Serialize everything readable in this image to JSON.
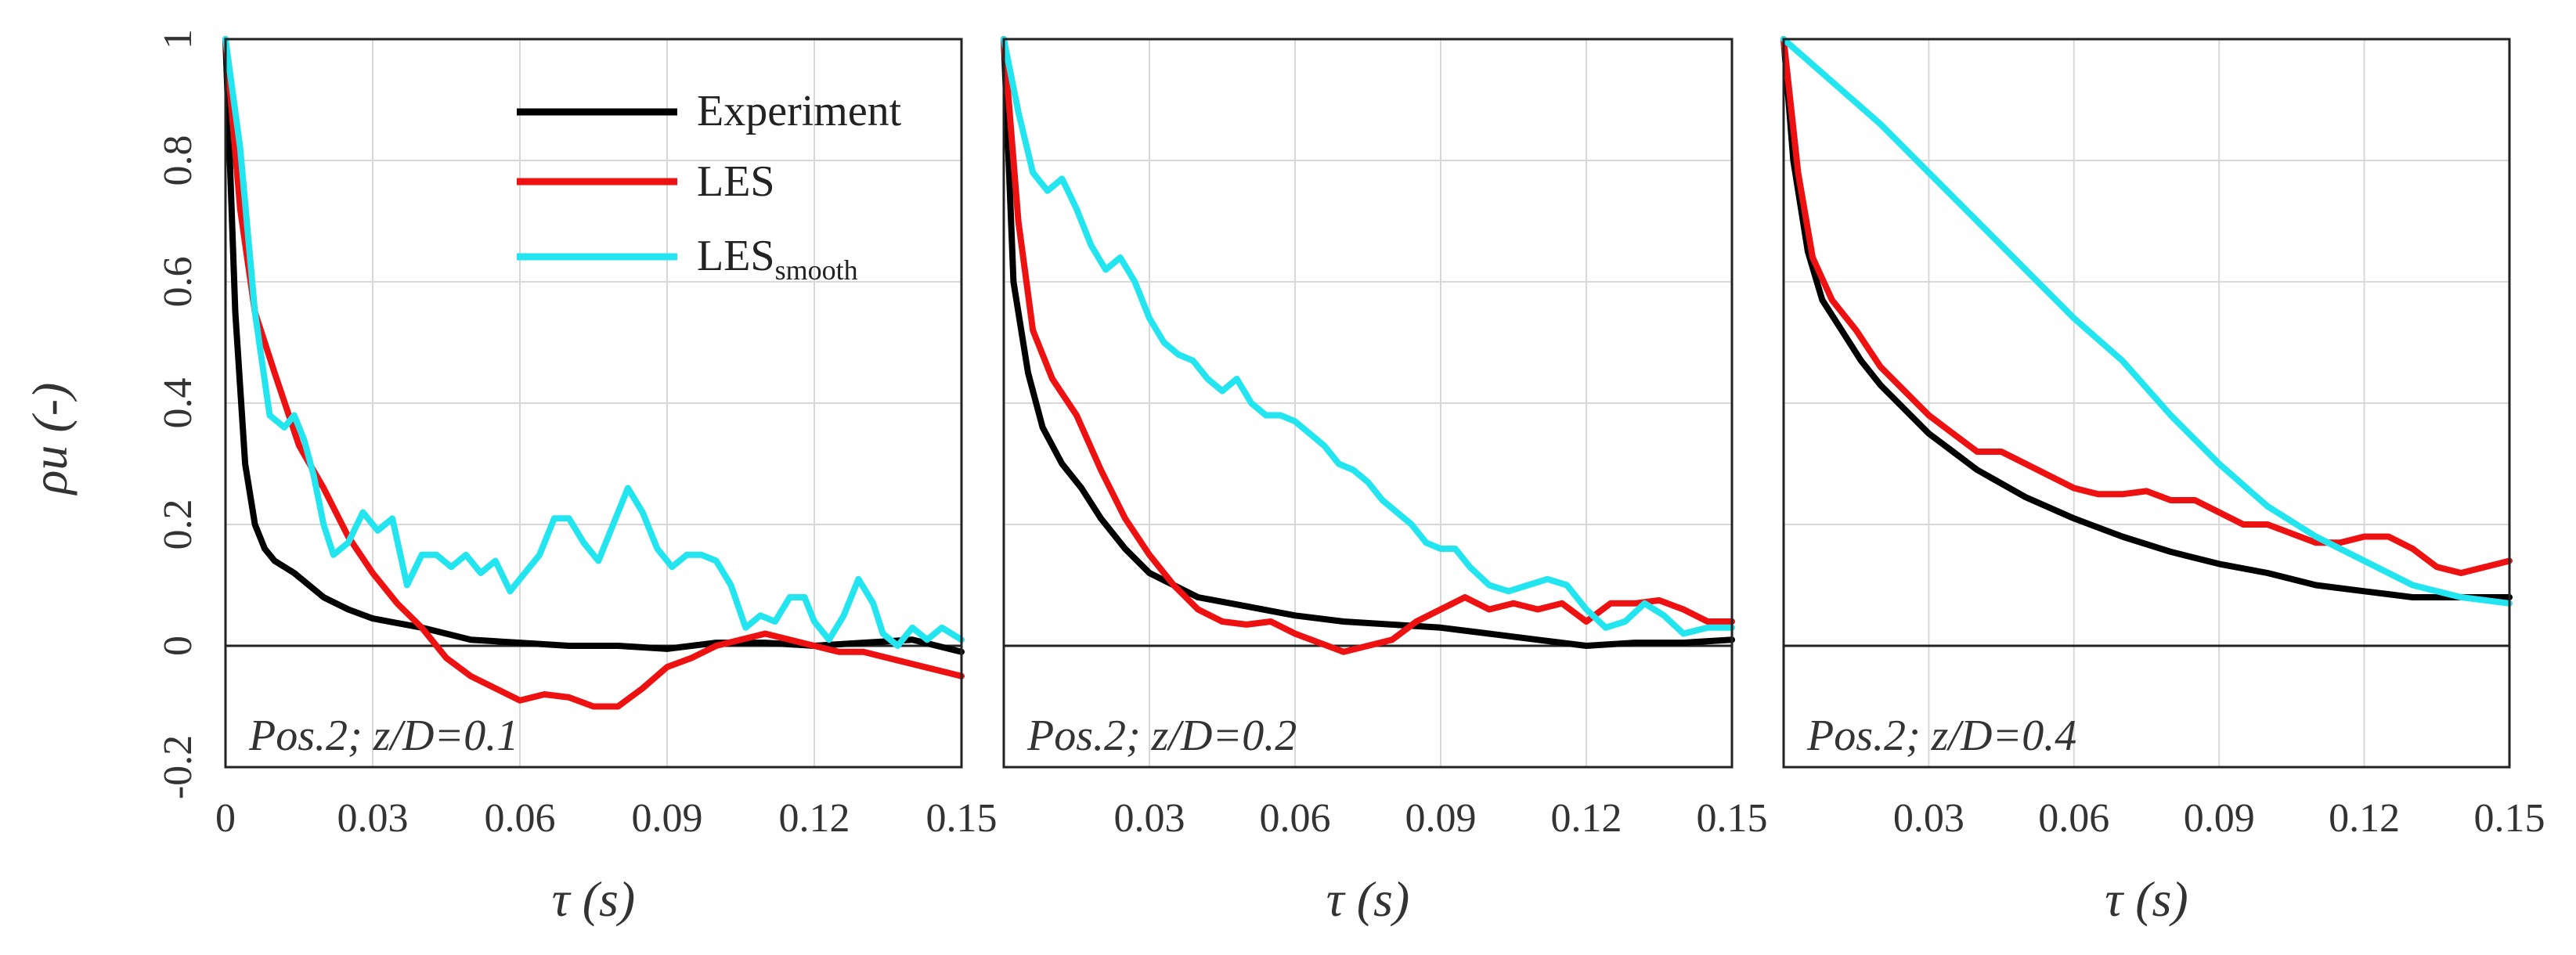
{
  "colors": {
    "experiment": "#000000",
    "les": "#ee1111",
    "les_smooth": "#22e5f0"
  },
  "chart_data": [
    {
      "type": "line",
      "title": "",
      "annotation": "Pos.2; z/D=0.1",
      "xlabel": "τ (s)",
      "ylabel": "ρu (-)",
      "xlim": [
        0,
        0.15
      ],
      "ylim": [
        -0.2,
        1
      ],
      "xticks": [
        "0",
        "0.03",
        "0.06",
        "0.09",
        "0.12",
        "0.15"
      ],
      "yticks": [
        "-0.2",
        "0",
        "0.2",
        "0.4",
        "0.6",
        "0.8",
        "1"
      ],
      "grid": true,
      "legend": {
        "position": "top-right",
        "entries": [
          "Experiment",
          "LES",
          "LES"
        ],
        "subscript": "smooth"
      },
      "series": [
        {
          "name": "Experiment",
          "x": [
            0,
            0.002,
            0.004,
            0.006,
            0.008,
            0.01,
            0.014,
            0.02,
            0.025,
            0.03,
            0.04,
            0.05,
            0.06,
            0.07,
            0.08,
            0.09,
            0.1,
            0.11,
            0.12,
            0.13,
            0.14,
            0.15
          ],
          "y": [
            1,
            0.55,
            0.3,
            0.2,
            0.16,
            0.14,
            0.12,
            0.08,
            0.06,
            0.045,
            0.03,
            0.01,
            0.005,
            0.0,
            0.0,
            -0.005,
            0.005,
            0.005,
            0.0,
            0.005,
            0.01,
            -0.01
          ]
        },
        {
          "name": "LES",
          "x": [
            0,
            0.003,
            0.006,
            0.01,
            0.015,
            0.02,
            0.025,
            0.03,
            0.035,
            0.04,
            0.045,
            0.05,
            0.055,
            0.06,
            0.065,
            0.07,
            0.075,
            0.08,
            0.085,
            0.09,
            0.095,
            0.1,
            0.105,
            0.11,
            0.115,
            0.12,
            0.125,
            0.13,
            0.135,
            0.14,
            0.145,
            0.15
          ],
          "y": [
            1,
            0.72,
            0.55,
            0.45,
            0.33,
            0.26,
            0.18,
            0.12,
            0.07,
            0.03,
            -0.02,
            -0.05,
            -0.07,
            -0.09,
            -0.08,
            -0.085,
            -0.1,
            -0.1,
            -0.07,
            -0.035,
            -0.02,
            0.0,
            0.01,
            0.02,
            0.01,
            0.0,
            -0.01,
            -0.01,
            -0.02,
            -0.03,
            -0.04,
            -0.05
          ]
        },
        {
          "name": "LES_smooth",
          "x": [
            0,
            0.003,
            0.006,
            0.009,
            0.012,
            0.014,
            0.016,
            0.018,
            0.02,
            0.022,
            0.025,
            0.028,
            0.031,
            0.034,
            0.037,
            0.04,
            0.043,
            0.046,
            0.049,
            0.052,
            0.055,
            0.058,
            0.061,
            0.064,
            0.067,
            0.07,
            0.073,
            0.076,
            0.079,
            0.082,
            0.085,
            0.088,
            0.091,
            0.094,
            0.097,
            0.1,
            0.103,
            0.106,
            0.109,
            0.112,
            0.115,
            0.118,
            0.12,
            0.123,
            0.126,
            0.129,
            0.132,
            0.134,
            0.137,
            0.14,
            0.143,
            0.146,
            0.15
          ],
          "y": [
            1,
            0.82,
            0.55,
            0.38,
            0.36,
            0.38,
            0.34,
            0.28,
            0.2,
            0.15,
            0.17,
            0.22,
            0.19,
            0.21,
            0.1,
            0.15,
            0.15,
            0.13,
            0.15,
            0.12,
            0.14,
            0.09,
            0.12,
            0.15,
            0.21,
            0.21,
            0.17,
            0.14,
            0.2,
            0.26,
            0.22,
            0.16,
            0.13,
            0.15,
            0.15,
            0.14,
            0.1,
            0.03,
            0.05,
            0.04,
            0.08,
            0.08,
            0.04,
            0.01,
            0.05,
            0.11,
            0.07,
            0.02,
            0.0,
            0.03,
            0.01,
            0.03,
            0.01
          ]
        }
      ]
    },
    {
      "type": "line",
      "title": "",
      "annotation": "Pos.2; z/D=0.2",
      "xlabel": "τ (s)",
      "ylabel": "",
      "xlim": [
        0,
        0.15
      ],
      "ylim": [
        -0.2,
        1
      ],
      "xticks": [
        "0.03",
        "0.06",
        "0.09",
        "0.12",
        "0.15"
      ],
      "grid": true,
      "series": [
        {
          "name": "Experiment",
          "x": [
            0,
            0.002,
            0.005,
            0.008,
            0.012,
            0.016,
            0.02,
            0.025,
            0.03,
            0.035,
            0.04,
            0.05,
            0.06,
            0.07,
            0.08,
            0.09,
            0.1,
            0.11,
            0.12,
            0.13,
            0.14,
            0.15
          ],
          "y": [
            1,
            0.6,
            0.45,
            0.36,
            0.3,
            0.26,
            0.21,
            0.16,
            0.12,
            0.1,
            0.08,
            0.065,
            0.05,
            0.04,
            0.035,
            0.03,
            0.02,
            0.01,
            0.0,
            0.005,
            0.005,
            0.01
          ]
        },
        {
          "name": "LES",
          "x": [
            0,
            0.003,
            0.006,
            0.01,
            0.015,
            0.02,
            0.025,
            0.03,
            0.035,
            0.04,
            0.045,
            0.05,
            0.055,
            0.06,
            0.065,
            0.07,
            0.075,
            0.08,
            0.085,
            0.09,
            0.095,
            0.1,
            0.105,
            0.11,
            0.115,
            0.12,
            0.125,
            0.13,
            0.135,
            0.14,
            0.145,
            0.15
          ],
          "y": [
            1,
            0.7,
            0.52,
            0.44,
            0.38,
            0.29,
            0.21,
            0.15,
            0.1,
            0.06,
            0.04,
            0.035,
            0.04,
            0.02,
            0.005,
            -0.01,
            0.0,
            0.01,
            0.04,
            0.06,
            0.08,
            0.06,
            0.07,
            0.06,
            0.07,
            0.04,
            0.07,
            0.07,
            0.075,
            0.06,
            0.04,
            0.04
          ]
        },
        {
          "name": "LES_smooth",
          "x": [
            0,
            0.003,
            0.006,
            0.009,
            0.012,
            0.015,
            0.018,
            0.021,
            0.024,
            0.027,
            0.03,
            0.033,
            0.036,
            0.039,
            0.042,
            0.045,
            0.048,
            0.051,
            0.054,
            0.057,
            0.06,
            0.063,
            0.066,
            0.069,
            0.072,
            0.075,
            0.078,
            0.081,
            0.084,
            0.087,
            0.09,
            0.093,
            0.096,
            0.1,
            0.104,
            0.108,
            0.112,
            0.116,
            0.12,
            0.124,
            0.128,
            0.132,
            0.136,
            0.14,
            0.145,
            0.15
          ],
          "y": [
            1,
            0.88,
            0.78,
            0.75,
            0.77,
            0.72,
            0.66,
            0.62,
            0.64,
            0.6,
            0.54,
            0.5,
            0.48,
            0.47,
            0.44,
            0.42,
            0.44,
            0.4,
            0.38,
            0.38,
            0.37,
            0.35,
            0.33,
            0.3,
            0.29,
            0.27,
            0.24,
            0.22,
            0.2,
            0.17,
            0.16,
            0.16,
            0.13,
            0.1,
            0.09,
            0.1,
            0.11,
            0.1,
            0.06,
            0.03,
            0.04,
            0.07,
            0.05,
            0.02,
            0.03,
            0.03
          ]
        }
      ]
    },
    {
      "type": "line",
      "title": "",
      "annotation": "Pos.2; z/D=0.4",
      "xlabel": "τ (s)",
      "ylabel": "",
      "xlim": [
        0,
        0.15
      ],
      "ylim": [
        -0.2,
        1
      ],
      "xticks": [
        "0.03",
        "0.06",
        "0.09",
        "0.12",
        "0.15"
      ],
      "grid": true,
      "series": [
        {
          "name": "Experiment",
          "x": [
            0,
            0.002,
            0.005,
            0.008,
            0.012,
            0.016,
            0.02,
            0.025,
            0.03,
            0.035,
            0.04,
            0.05,
            0.06,
            0.07,
            0.08,
            0.09,
            0.1,
            0.11,
            0.12,
            0.13,
            0.14,
            0.15
          ],
          "y": [
            1,
            0.8,
            0.65,
            0.57,
            0.52,
            0.47,
            0.43,
            0.39,
            0.35,
            0.32,
            0.29,
            0.245,
            0.21,
            0.18,
            0.155,
            0.135,
            0.12,
            0.1,
            0.09,
            0.08,
            0.08,
            0.08
          ]
        },
        {
          "name": "LES",
          "x": [
            0,
            0.003,
            0.006,
            0.01,
            0.015,
            0.02,
            0.025,
            0.03,
            0.035,
            0.04,
            0.045,
            0.05,
            0.055,
            0.06,
            0.065,
            0.07,
            0.075,
            0.08,
            0.085,
            0.09,
            0.095,
            0.1,
            0.105,
            0.11,
            0.115,
            0.12,
            0.125,
            0.13,
            0.135,
            0.14,
            0.145,
            0.15
          ],
          "y": [
            1,
            0.78,
            0.64,
            0.57,
            0.52,
            0.46,
            0.42,
            0.38,
            0.35,
            0.32,
            0.32,
            0.3,
            0.28,
            0.26,
            0.25,
            0.25,
            0.255,
            0.24,
            0.24,
            0.22,
            0.2,
            0.2,
            0.185,
            0.17,
            0.17,
            0.18,
            0.18,
            0.16,
            0.13,
            0.12,
            0.13,
            0.14
          ]
        },
        {
          "name": "LES_smooth",
          "x": [
            0,
            0.01,
            0.02,
            0.03,
            0.04,
            0.05,
            0.06,
            0.07,
            0.08,
            0.09,
            0.1,
            0.11,
            0.12,
            0.13,
            0.14,
            0.15
          ],
          "y": [
            1,
            0.93,
            0.86,
            0.78,
            0.7,
            0.62,
            0.54,
            0.47,
            0.38,
            0.3,
            0.23,
            0.18,
            0.14,
            0.1,
            0.08,
            0.07
          ]
        }
      ]
    }
  ]
}
